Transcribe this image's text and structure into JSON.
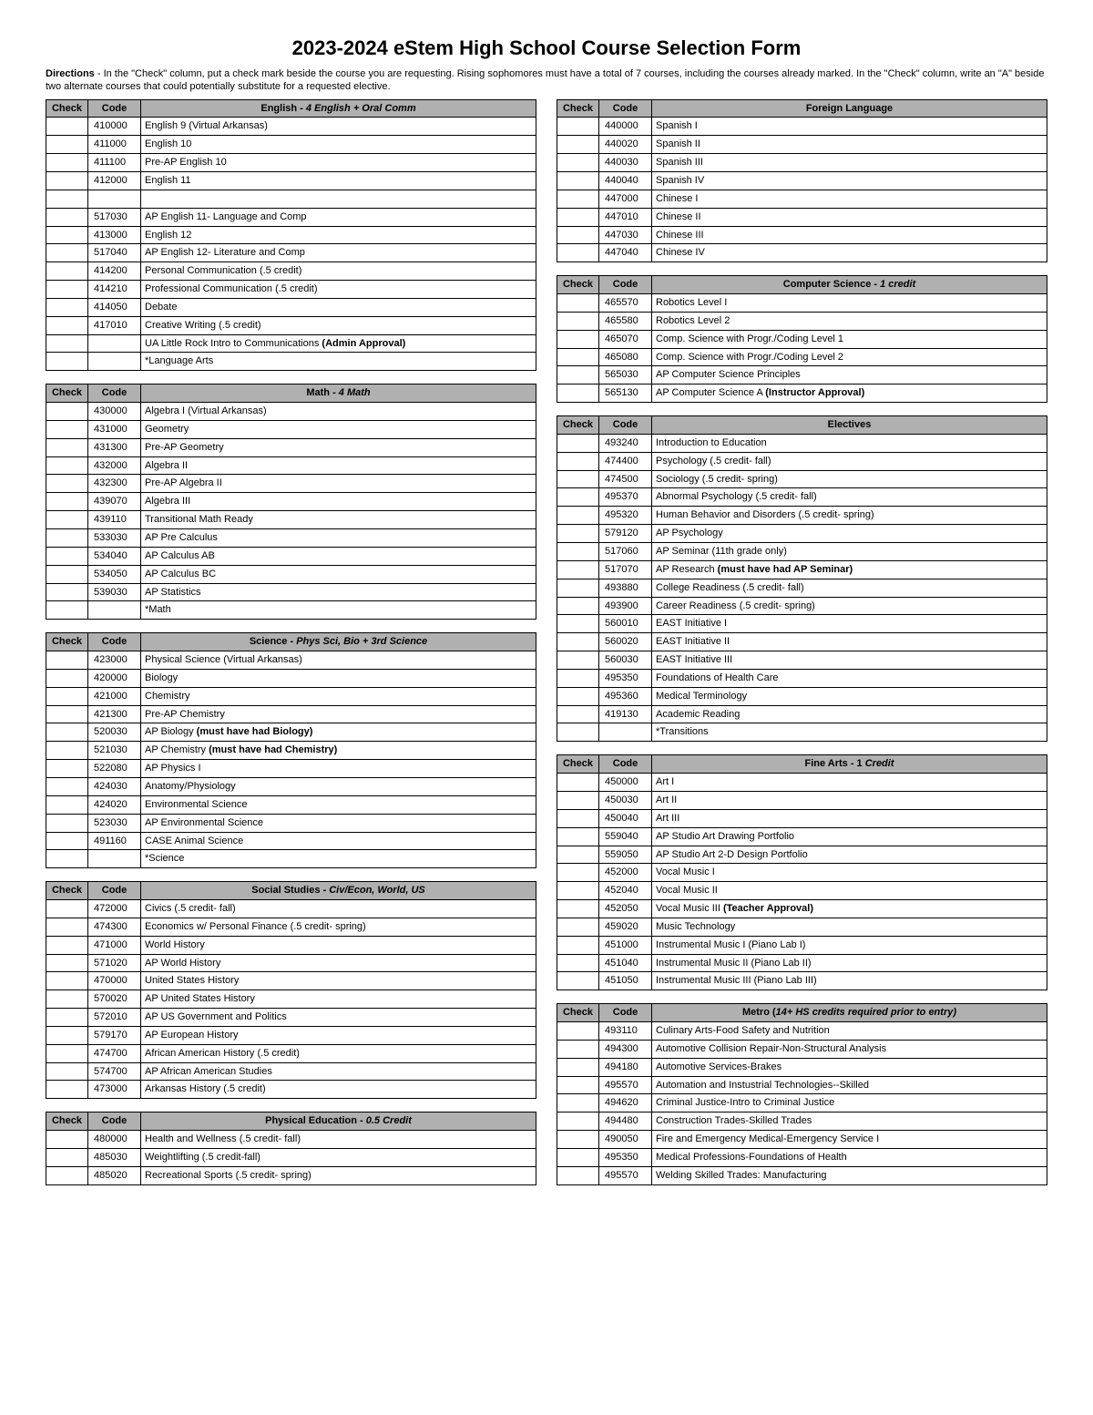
{
  "title": "2023-2024 eStem High School Course Selection Form",
  "directionsLabel": "Directions",
  "directionsText": " - In the \"Check\" column, put a check mark beside the course you are requesting. Rising sophomores must have a total of 7 courses, including the courses already marked. In the \"Check\" column, write an \"A\" beside two alternate courses that could potentially substitute for a requested elective.",
  "headers": {
    "check": "Check",
    "code": "Code"
  },
  "leftSections": [
    {
      "heading": {
        "plain": "English - ",
        "italic": "4 English + Oral Comm"
      },
      "rows": [
        {
          "code": "410000",
          "name": "English 9 (Virtual Arkansas)"
        },
        {
          "code": "411000",
          "name": "English 10"
        },
        {
          "code": "411100",
          "name": "Pre-AP English 10"
        },
        {
          "code": "412000",
          "name": "English 11"
        },
        {
          "code": "",
          "name": ""
        },
        {
          "code": "517030",
          "name": "AP English 11- Language and Comp"
        },
        {
          "code": "413000",
          "name": "English 12"
        },
        {
          "code": "517040",
          "name": "AP English 12- Literature and Comp"
        },
        {
          "code": "414200",
          "name": "Personal Communication (.5 credit)"
        },
        {
          "code": "414210",
          "name": "Professional Communication (.5 credit)"
        },
        {
          "code": "414050",
          "name": "Debate"
        },
        {
          "code": "417010",
          "name": "Creative Writing (.5 credit)"
        },
        {
          "code": "",
          "name": "UA Little Rock Intro to Communications ",
          "boldSuffix": "(Admin Approval)"
        },
        {
          "code": "",
          "name": "*Language Arts"
        }
      ]
    },
    {
      "heading": {
        "plain": "Math - ",
        "italic": "4 Math"
      },
      "rows": [
        {
          "code": "430000",
          "name": "Algebra I (Virtual Arkansas)"
        },
        {
          "code": "431000",
          "name": "Geometry"
        },
        {
          "code": "431300",
          "name": "Pre-AP Geometry"
        },
        {
          "code": "432000",
          "name": "Algebra II"
        },
        {
          "code": "432300",
          "name": "Pre-AP Algebra II"
        },
        {
          "code": "439070",
          "name": "Algebra III"
        },
        {
          "code": "439110",
          "name": "Transitional Math Ready"
        },
        {
          "code": "533030",
          "name": "AP Pre Calculus"
        },
        {
          "code": "534040",
          "name": "AP Calculus AB"
        },
        {
          "code": "534050",
          "name": "AP Calculus BC"
        },
        {
          "code": "539030",
          "name": "AP Statistics"
        },
        {
          "code": "",
          "name": "*Math"
        }
      ]
    },
    {
      "heading": {
        "plain": "Science - ",
        "italic": "Phys Sci, Bio + 3rd Science"
      },
      "rows": [
        {
          "code": "423000",
          "name": "Physical Science (Virtual Arkansas)"
        },
        {
          "code": "420000",
          "name": "Biology"
        },
        {
          "code": "421000",
          "name": "Chemistry"
        },
        {
          "code": "421300",
          "name": "Pre-AP Chemistry"
        },
        {
          "code": "520030",
          "name": "AP Biology ",
          "boldSuffix": "(must have had Biology)"
        },
        {
          "code": "521030",
          "name": "AP Chemistry ",
          "boldSuffix": "(must have had Chemistry)"
        },
        {
          "code": "522080",
          "name": "AP Physics I"
        },
        {
          "code": "424030",
          "name": "Anatomy/Physiology"
        },
        {
          "code": "424020",
          "name": "Environmental Science"
        },
        {
          "code": "523030",
          "name": "AP Environmental Science"
        },
        {
          "code": "491160",
          "name": "CASE Animal Science"
        },
        {
          "code": "",
          "name": "*Science"
        }
      ]
    },
    {
      "heading": {
        "plain": "Social Studies - ",
        "italic": "Civ/Econ, World, US"
      },
      "rows": [
        {
          "code": "472000",
          "name": "Civics (.5 credit- fall)"
        },
        {
          "code": "474300",
          "name": "Economics w/ Personal Finance (.5 credit- spring)"
        },
        {
          "code": "471000",
          "name": "World History"
        },
        {
          "code": "571020",
          "name": "AP World History"
        },
        {
          "code": "470000",
          "name": "United States History"
        },
        {
          "code": "570020",
          "name": "AP United States History"
        },
        {
          "code": "572010",
          "name": "AP US Government and Politics"
        },
        {
          "code": "579170",
          "name": "AP European History"
        },
        {
          "code": "474700",
          "name": "African American History (.5 credit)"
        },
        {
          "code": "574700",
          "name": "AP African American Studies"
        },
        {
          "code": "473000",
          "name": "Arkansas History (.5 credit)"
        }
      ]
    },
    {
      "heading": {
        "plain": "Physical Education - ",
        "italic": "0.5 Credit"
      },
      "rows": [
        {
          "code": "480000",
          "name": "Health and Wellness (.5 credit- fall)"
        },
        {
          "code": "485030",
          "name": "Weightlifting (.5 credit-fall)"
        },
        {
          "code": "485020",
          "name": "Recreational Sports (.5 credit- spring)"
        }
      ]
    }
  ],
  "rightSections": [
    {
      "heading": {
        "plain": "Foreign Language"
      },
      "rows": [
        {
          "code": "440000",
          "name": "Spanish I"
        },
        {
          "code": "440020",
          "name": "Spanish II"
        },
        {
          "code": "440030",
          "name": "Spanish III"
        },
        {
          "code": "440040",
          "name": "Spanish IV"
        },
        {
          "code": "447000",
          "name": "Chinese I"
        },
        {
          "code": "447010",
          "name": "Chinese II"
        },
        {
          "code": "447030",
          "name": "Chinese III"
        },
        {
          "code": "447040",
          "name": "Chinese IV"
        }
      ]
    },
    {
      "heading": {
        "plain": "Computer Science - ",
        "italic": "1 credit"
      },
      "rows": [
        {
          "code": "465570",
          "name": "Robotics Level I"
        },
        {
          "code": "465580",
          "name": "Robotics Level 2"
        },
        {
          "code": "465070",
          "name": "Comp. Science with Progr./Coding Level 1"
        },
        {
          "code": "465080",
          "name": "Comp. Science with Progr./Coding Level 2"
        },
        {
          "code": "565030",
          "name": "AP Computer Science Principles"
        },
        {
          "code": "565130",
          "name": "AP Computer Science A  ",
          "boldSuffix": "(Instructor Approval)"
        }
      ]
    },
    {
      "heading": {
        "plain": "Electives"
      },
      "rows": [
        {
          "code": "493240",
          "name": "Introduction to Education"
        },
        {
          "code": "474400",
          "name": "Psychology (.5 credit- fall)"
        },
        {
          "code": "474500",
          "name": "Sociology (.5 credit- spring)"
        },
        {
          "code": "495370",
          "name": "Abnormal Psychology (.5 credit- fall)"
        },
        {
          "code": "495320",
          "name": "Human Behavior and Disorders (.5 credit- spring)"
        },
        {
          "code": "579120",
          "name": "AP Psychology"
        },
        {
          "code": "517060",
          "name": "AP Seminar (11th grade only)"
        },
        {
          "code": "517070",
          "name": "AP Research ",
          "boldSuffix": "(must have had AP Seminar)"
        },
        {
          "code": "493880",
          "name": "College Readiness (.5 credit- fall)"
        },
        {
          "code": "493900",
          "name": "Career Readiness (.5 credit- spring)"
        },
        {
          "code": "560010",
          "name": "EAST Initiative I"
        },
        {
          "code": "560020",
          "name": "EAST Initiative II"
        },
        {
          "code": "560030",
          "name": "EAST Initiative III"
        },
        {
          "code": "495350",
          "name": "Foundations of Health Care"
        },
        {
          "code": "495360",
          "name": "Medical Terminology"
        },
        {
          "code": "419130",
          "name": "Academic Reading"
        },
        {
          "code": "",
          "name": "*Transitions"
        }
      ]
    },
    {
      "heading": {
        "plain": "Fine Arts - 1 ",
        "italic": "Credit"
      },
      "rows": [
        {
          "code": "450000",
          "name": "Art I"
        },
        {
          "code": "450030",
          "name": "Art II"
        },
        {
          "code": "450040",
          "name": "Art III"
        },
        {
          "code": "559040",
          "name": "AP Studio Art Drawing Portfolio"
        },
        {
          "code": "559050",
          "name": "AP Studio Art 2-D Design Portfolio"
        },
        {
          "code": "452000",
          "name": "Vocal Music I"
        },
        {
          "code": "452040",
          "name": "Vocal Music II"
        },
        {
          "code": "452050",
          "name": "Vocal Music III ",
          "boldSuffix": "(Teacher Approval)"
        },
        {
          "code": "459020",
          "name": "Music Technology"
        },
        {
          "code": "451000",
          "name": "Instrumental Music I (Piano Lab I)"
        },
        {
          "code": "451040",
          "name": "Instrumental Music II (Piano Lab II)"
        },
        {
          "code": "451050",
          "name": "Instrumental Music III (Piano Lab III)"
        }
      ]
    },
    {
      "heading": {
        "plain": "Metro (",
        "italic": "14+ HS credits required prior to entry)",
        "closeParen": ""
      },
      "rows": [
        {
          "code": "493110",
          "name": "Culinary Arts-Food Safety and Nutrition"
        },
        {
          "code": "494300",
          "name": "Automotive Collision Repair-Non-Structural Analysis"
        },
        {
          "code": "494180",
          "name": "Automotive Services-Brakes"
        },
        {
          "code": "495570",
          "name": "Automation and Instustrial Technologies--Skilled"
        },
        {
          "code": "494620",
          "name": "Criminal Justice-Intro to Criminal Justice"
        },
        {
          "code": "494480",
          "name": "Construction Trades-Skilled Trades"
        },
        {
          "code": "490050",
          "name": "Fire and Emergency Medical-Emergency Service I"
        },
        {
          "code": "495350",
          "name": "Medical Professions-Foundations of Health"
        },
        {
          "code": "495570",
          "name": "Welding Skilled Trades:  Manufacturing"
        }
      ]
    }
  ]
}
